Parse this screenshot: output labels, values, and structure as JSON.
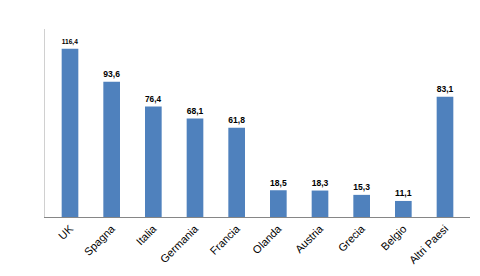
{
  "chart_data": {
    "type": "bar",
    "categories": [
      "UK",
      "Spagna",
      "Italia",
      "Germania",
      "Francia",
      "Olanda",
      "Austria",
      "Grecia",
      "Belgio",
      "Altri Paesi"
    ],
    "values": [
      116.4,
      93.6,
      76.4,
      68.1,
      61.8,
      18.5,
      18.3,
      15.3,
      11.1,
      83.1
    ],
    "value_labels": [
      "116,4",
      "93,6",
      "76,4",
      "68,1",
      "61,8",
      "18,5",
      "18,3",
      "15,3",
      "11,1",
      "83,1"
    ],
    "color": "#4f81bd",
    "ylim": [
      0,
      130
    ],
    "grid": false,
    "data_labels": true,
    "tick_labels": "x"
  }
}
